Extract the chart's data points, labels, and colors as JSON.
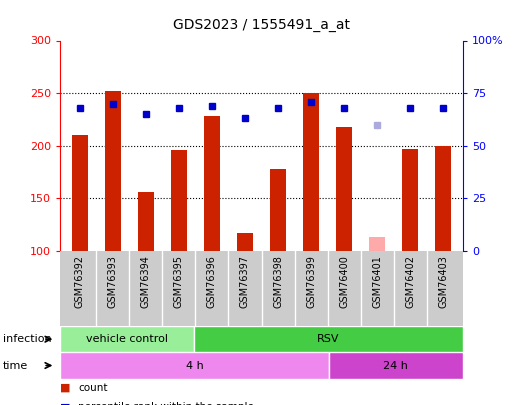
{
  "title": "GDS2023 / 1555491_a_at",
  "samples": [
    "GSM76392",
    "GSM76393",
    "GSM76394",
    "GSM76395",
    "GSM76396",
    "GSM76397",
    "GSM76398",
    "GSM76399",
    "GSM76400",
    "GSM76401",
    "GSM76402",
    "GSM76403"
  ],
  "count_values": [
    210,
    252,
    156,
    196,
    228,
    117,
    178,
    250,
    218,
    null,
    197,
    200
  ],
  "absent_count_value": 113,
  "absent_count_index": 9,
  "rank_values": [
    68,
    70,
    65,
    68,
    69,
    63,
    68,
    71,
    68,
    null,
    68,
    68
  ],
  "absent_rank_value": 60,
  "absent_rank_index": 9,
  "count_color": "#cc2200",
  "rank_color": "#0000cc",
  "absent_count_color": "#ffaaaa",
  "absent_rank_color": "#aaaadd",
  "ylim_left": [
    100,
    300
  ],
  "ylim_right": [
    0,
    100
  ],
  "yticks_left": [
    100,
    150,
    200,
    250,
    300
  ],
  "yticks_right": [
    0,
    25,
    50,
    75,
    100
  ],
  "ytick_labels_right": [
    "0",
    "25",
    "50",
    "75",
    "100%"
  ],
  "infection_groups": [
    {
      "label": "vehicle control",
      "start": 0,
      "end": 4,
      "color": "#99ee99"
    },
    {
      "label": "RSV",
      "start": 4,
      "end": 12,
      "color": "#44cc44"
    }
  ],
  "time_groups": [
    {
      "label": "4 h",
      "start": 0,
      "end": 8,
      "color": "#ee88ee"
    },
    {
      "label": "24 h",
      "start": 8,
      "end": 12,
      "color": "#cc44cc"
    }
  ],
  "label_bg": "#cccccc",
  "plot_bg_color": "#ffffff",
  "bar_width": 0.5,
  "figsize": [
    5.23,
    4.05
  ],
  "dpi": 100
}
